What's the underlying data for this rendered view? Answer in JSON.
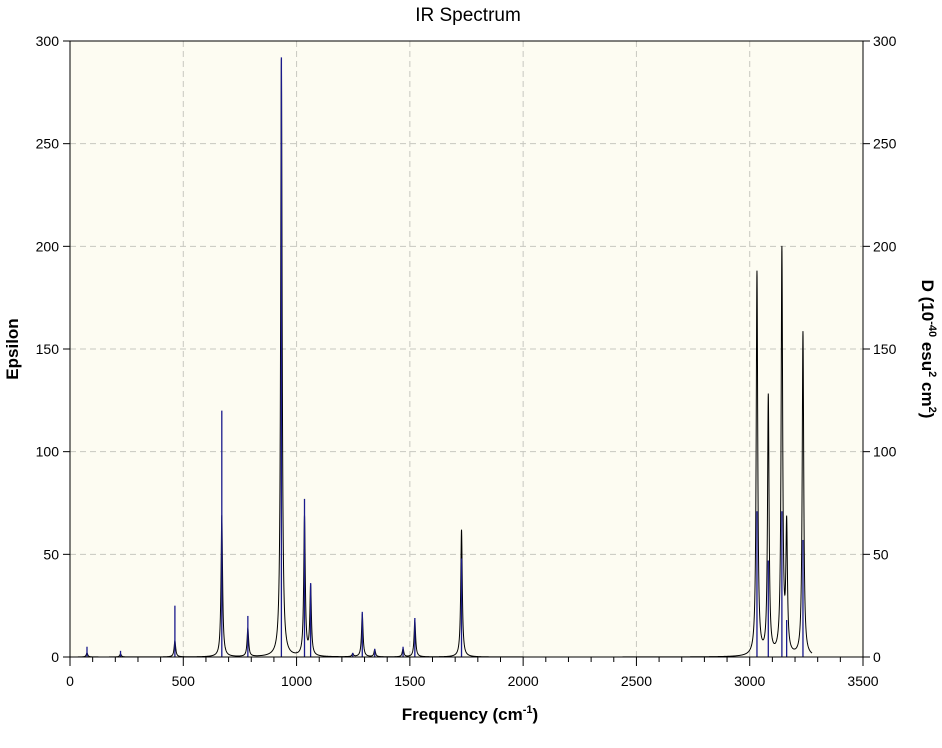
{
  "chart_data": {
    "type": "line",
    "title": "IR Spectrum",
    "xlabel": "Frequency (cm",
    "xlabel_sup": "-1",
    "xlabel_end": ")",
    "ylabel": "Epsilon",
    "y2label": "D (10",
    "y2label_sup1": "-40",
    "y2label_mid": " esu",
    "y2label_sup2": "2",
    "y2label_mid2": " cm",
    "y2label_sup3": "2",
    "y2label_end": ")",
    "xlim": [
      0,
      3500
    ],
    "ylim": [
      0,
      300
    ],
    "y2lim": [
      0,
      300
    ],
    "xticks": [
      "0",
      "500",
      "1000",
      "1500",
      "2000",
      "2500",
      "3000",
      "3500"
    ],
    "yticks": [
      "0",
      "50",
      "100",
      "150",
      "200",
      "250",
      "300"
    ],
    "y2ticks": [
      "0",
      "50",
      "100",
      "150",
      "200",
      "250",
      "300"
    ],
    "grid": true,
    "background_color": "#fdfcf2",
    "spectrum_color": "#000000",
    "stick_color": "#1a1a8c",
    "spectrum_halfwidth": 4,
    "peaks": [
      {
        "x": 75,
        "stick": 5,
        "spectrum": 2
      },
      {
        "x": 223,
        "stick": 3,
        "spectrum": 1.5
      },
      {
        "x": 463,
        "stick": 25,
        "spectrum": 8
      },
      {
        "x": 670,
        "stick": 120,
        "spectrum": 69
      },
      {
        "x": 785,
        "stick": 20,
        "spectrum": 14
      },
      {
        "x": 933,
        "stick": 292,
        "spectrum": 291
      },
      {
        "x": 1035,
        "stick": 77,
        "spectrum": 68
      },
      {
        "x": 1062,
        "stick": 36,
        "spectrum": 34
      },
      {
        "x": 1248,
        "stick": 2,
        "spectrum": 1.5
      },
      {
        "x": 1290,
        "stick": 22,
        "spectrum": 21
      },
      {
        "x": 1345,
        "stick": 4,
        "spectrum": 3.5
      },
      {
        "x": 1470,
        "stick": 5,
        "spectrum": 4
      },
      {
        "x": 1522,
        "stick": 19,
        "spectrum": 18
      },
      {
        "x": 1728,
        "stick": 48,
        "spectrum": 62
      },
      {
        "x": 3032,
        "stick": 71,
        "spectrum": 187
      },
      {
        "x": 3082,
        "stick": 47,
        "spectrum": 126
      },
      {
        "x": 3142,
        "stick": 71,
        "spectrum": 197
      },
      {
        "x": 3163,
        "stick": 18,
        "spectrum": 61
      },
      {
        "x": 3235,
        "stick": 57,
        "spectrum": 158
      }
    ]
  }
}
